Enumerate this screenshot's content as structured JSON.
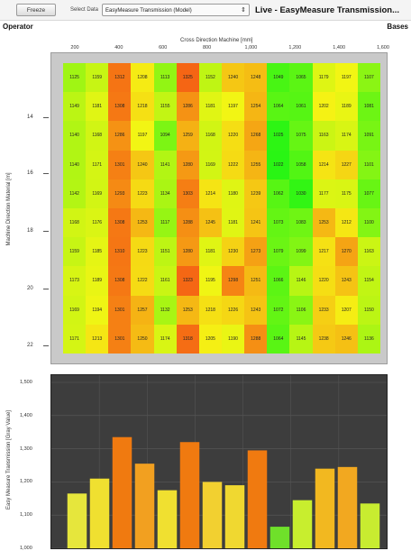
{
  "toolbar": {
    "freeze_label": "Freeze",
    "select_data_label": "Select Data",
    "select_value": "EasyMeasure Transmission (Model)",
    "live_title": "Live - EasyMeasure Transmission..."
  },
  "header": {
    "operator": "Operator",
    "bases": "Bases"
  },
  "heatmap": {
    "x_axis_title": "Cross Direction Machine [mm]",
    "y_axis_title": "Machine Direction Material [m]",
    "x_ticks": [
      "200",
      "400",
      "600",
      "800",
      "1,000",
      "1,200",
      "1,400",
      "1,600"
    ],
    "y_ticks": [
      "14",
      "16",
      "18",
      "20",
      "22"
    ],
    "cells": [
      [
        "1125",
        "1159",
        "1312",
        "1208",
        "1113",
        "1325",
        "1152",
        "1240",
        "1248",
        "1049",
        "1065",
        "1179",
        "1197",
        "1107"
      ],
      [
        "1149",
        "1181",
        "1308",
        "1218",
        "1155",
        "1286",
        "1181",
        "1197",
        "1254",
        "1064",
        "1061",
        "1202",
        "1189",
        "1081"
      ],
      [
        "1140",
        "1168",
        "1286",
        "1197",
        "1094",
        "1259",
        "1168",
        "1220",
        "1268",
        "1025",
        "1075",
        "1163",
        "1174",
        "1091"
      ],
      [
        "1140",
        "1171",
        "1301",
        "1240",
        "1141",
        "1280",
        "1169",
        "1222",
        "1255",
        "1022",
        "1058",
        "1214",
        "1227",
        "1101"
      ],
      [
        "1142",
        "1169",
        "1293",
        "1223",
        "1134",
        "1303",
        "1214",
        "1180",
        "1239",
        "1062",
        "1030",
        "1177",
        "1175",
        "1077"
      ],
      [
        "1168",
        "1176",
        "1308",
        "1253",
        "1117",
        "1288",
        "1245",
        "1181",
        "1241",
        "1073",
        "1083",
        "1253",
        "1212",
        "1100"
      ],
      [
        "1159",
        "1185",
        "1310",
        "1223",
        "1151",
        "1280",
        "1181",
        "1230",
        "1273",
        "1079",
        "1099",
        "1217",
        "1270",
        "1163"
      ],
      [
        "1173",
        "1189",
        "1308",
        "1222",
        "1161",
        "1323",
        "1195",
        "1298",
        "1251",
        "1066",
        "1146",
        "1220",
        "1243",
        "1154"
      ],
      [
        "1169",
        "1194",
        "1301",
        "1257",
        "1132",
        "1253",
        "1218",
        "1226",
        "1243",
        "1072",
        "1106",
        "1233",
        "1207",
        "1150"
      ],
      [
        "1171",
        "1213",
        "1301",
        "1250",
        "1174",
        "1318",
        "1205",
        "1190",
        "1288",
        "1064",
        "1145",
        "1238",
        "1246",
        "1136"
      ]
    ]
  },
  "chart_data": {
    "type": "bar",
    "ylabel": "Easy Measure Transmission [Gray Value]",
    "ylim": [
      1000,
      1500
    ],
    "y_ticks": [
      "1,000",
      "1,100",
      "1,200",
      "1,300",
      "1,400",
      "1,500"
    ],
    "values": [
      1165,
      1210,
      1335,
      1255,
      1175,
      1320,
      1200,
      1190,
      1295,
      1065,
      1145,
      1240,
      1245,
      1135
    ],
    "colors": [
      "#e6e63c",
      "#f0e030",
      "#f07a10",
      "#f2a020",
      "#f0e030",
      "#f07a10",
      "#f2d030",
      "#f0d830",
      "#f07a10",
      "#6fe02a",
      "#c8ee2e",
      "#f2b820",
      "#f2a820",
      "#c8ec30"
    ]
  }
}
